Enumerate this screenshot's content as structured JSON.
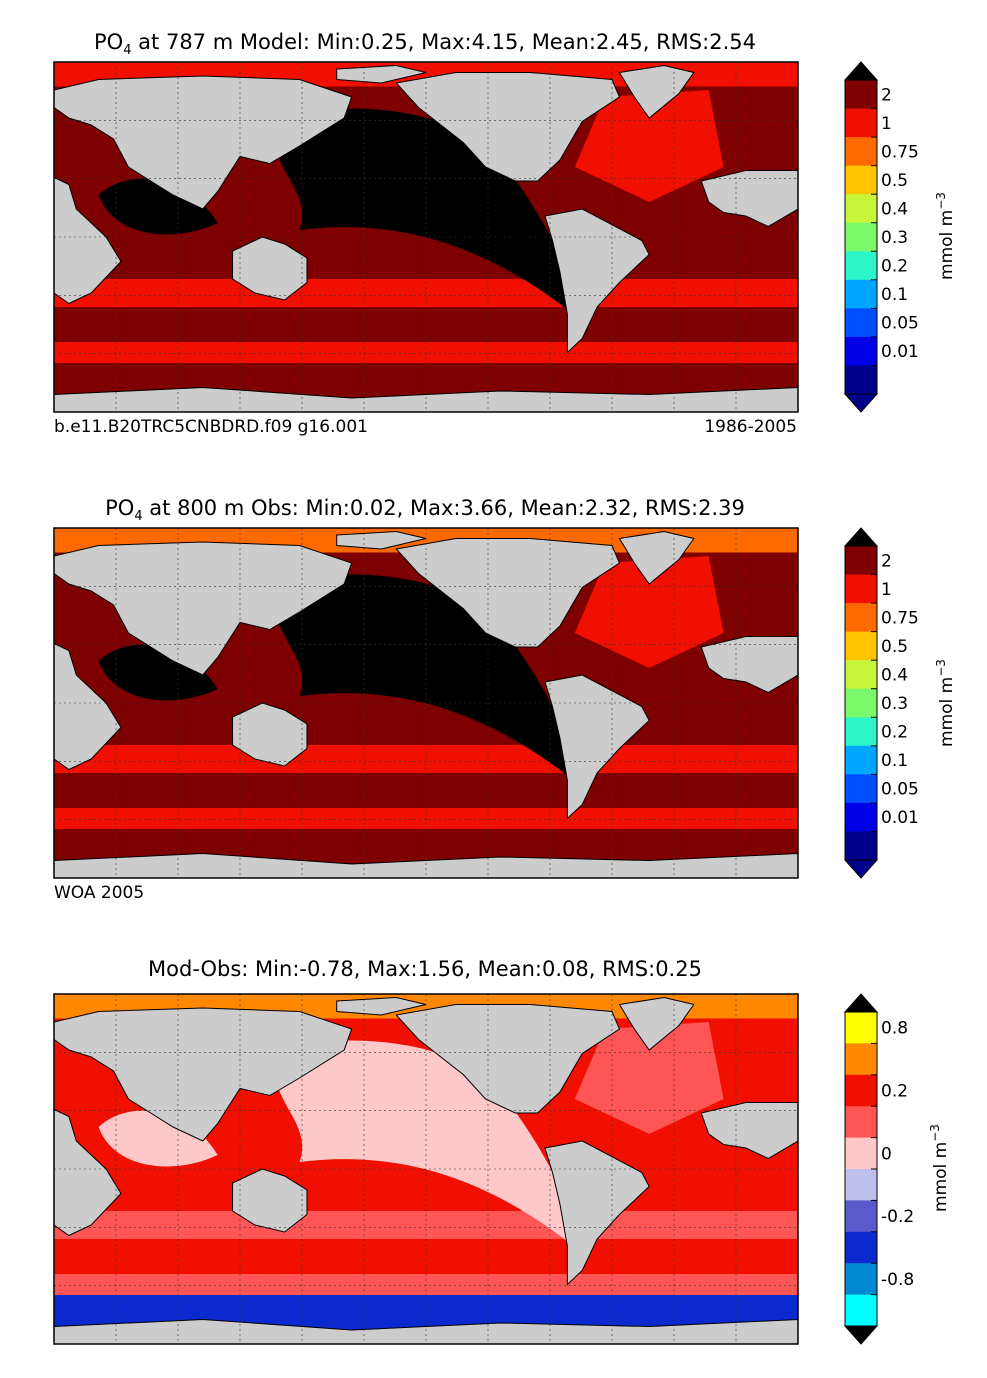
{
  "chart_data": [
    {
      "type": "heatmap",
      "title_prefix": "PO",
      "title_sub": "4",
      "title_rest": " at 787 m Model: Min:0.25, Max:4.15, Mean:2.45, RMS:2.54",
      "caption_left": "b.e11.B20TRC5CNBDRD.f09 g16.001",
      "caption_right": "1986-2005",
      "colorbar_label": "mmol m",
      "colorbar_exp": "−3",
      "colorbar": {
        "ticks": [
          "2",
          "1",
          "0.75",
          "0.5",
          "0.4",
          "0.3",
          "0.2",
          "0.1",
          "0.05",
          "0.01"
        ],
        "colors": [
          "#7f0000",
          "#f00f00",
          "#ff6a00",
          "#ffc400",
          "#c6f53a",
          "#7cf96b",
          "#2cf5c7",
          "#00a6ff",
          "#0050ff",
          "#0000e6",
          "#00008a"
        ],
        "extend_high": "#000000",
        "extend_low": "#00008a"
      },
      "regions": {
        "land": "#cccccc",
        "background": "#7f0000",
        "bands": [
          "#f00f00",
          "#7f0000",
          "#f00f00",
          "#7f0000"
        ],
        "core": "#000000",
        "arctic": "#f00f00",
        "atlantic": "#f00f00"
      }
    },
    {
      "type": "heatmap",
      "title_prefix": "PO",
      "title_sub": "4",
      "title_rest": " at 800 m Obs: Min:0.02, Max:3.66, Mean:2.32, RMS:2.39",
      "caption_left": "WOA 2005",
      "caption_right": "",
      "colorbar_label": "mmol m",
      "colorbar_exp": "−3",
      "colorbar": {
        "ticks": [
          "2",
          "1",
          "0.75",
          "0.5",
          "0.4",
          "0.3",
          "0.2",
          "0.1",
          "0.05",
          "0.01"
        ],
        "colors": [
          "#7f0000",
          "#f00f00",
          "#ff6a00",
          "#ffc400",
          "#c6f53a",
          "#7cf96b",
          "#2cf5c7",
          "#00a6ff",
          "#0050ff",
          "#0000e6",
          "#00008a"
        ],
        "extend_high": "#000000",
        "extend_low": "#00008a"
      },
      "regions": {
        "land": "#cccccc",
        "background": "#7f0000",
        "bands": [
          "#f00f00",
          "#7f0000",
          "#f00f00",
          "#7f0000"
        ],
        "core": "#000000",
        "arctic": "#ff6a00",
        "atlantic": "#f00f00"
      }
    },
    {
      "type": "heatmap",
      "title_prefix": "",
      "title_sub": "",
      "title_rest": "Mod-Obs: Min:-0.78, Max:1.56, Mean:0.08, RMS:0.25",
      "caption_left": "",
      "caption_right": "",
      "colorbar_label": "mmol m",
      "colorbar_exp": "−3",
      "colorbar": {
        "ticks": [
          "0.8",
          "",
          "0.2",
          "",
          "0",
          "",
          "-0.2",
          "",
          "-0.8"
        ],
        "colors": [
          "#ffff00",
          "#ff8800",
          "#f00f00",
          "#ff5555",
          "#ffc8c8",
          "#c0c0ec",
          "#5a5acd",
          "#0a2ad0",
          "#0088d0",
          "#00ffff"
        ],
        "extend_high": "#000000",
        "extend_low": "#000000"
      },
      "regions": {
        "land": "#cccccc",
        "background": "#f00f00",
        "bands": [
          "#ff5555",
          "#f00f00",
          "#ff5555",
          "#0a2ad0"
        ],
        "core": "#ffc8c8",
        "arctic": "#ff8800",
        "atlantic": "#ff5555"
      }
    }
  ]
}
